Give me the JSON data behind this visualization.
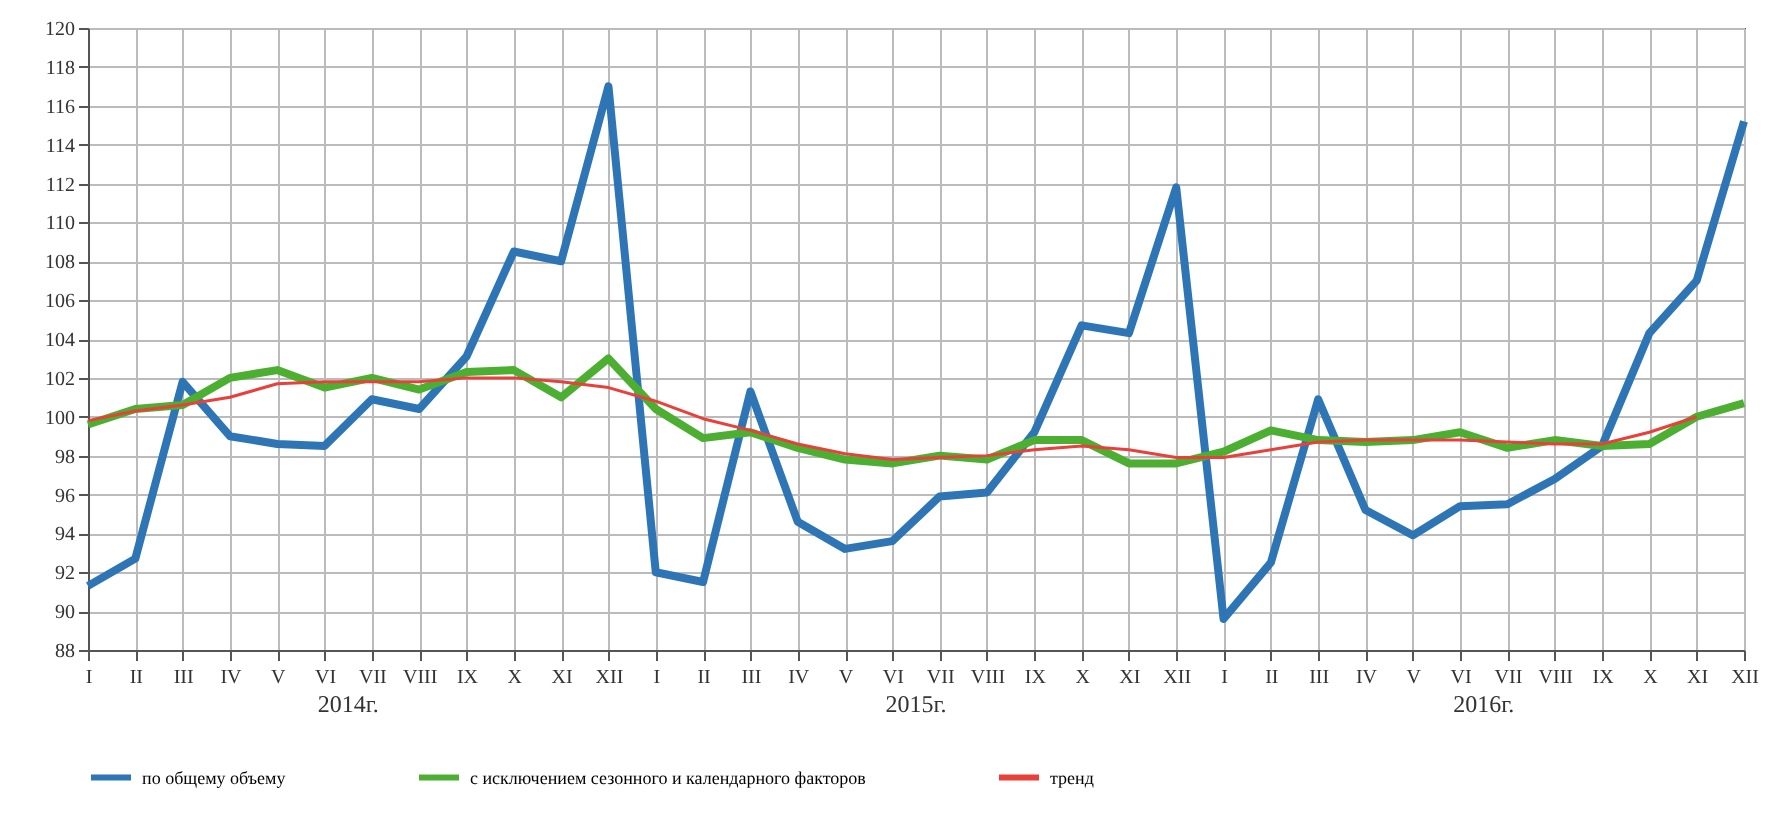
{
  "chart_data": {
    "type": "line",
    "categories": [
      "I",
      "II",
      "III",
      "IV",
      "V",
      "VI",
      "VII",
      "VIII",
      "IX",
      "X",
      "XI",
      "XII",
      "I",
      "II",
      "III",
      "IV",
      "V",
      "VI",
      "VII",
      "VIII",
      "IX",
      "X",
      "XI",
      "XII",
      "I",
      "II",
      "III",
      "IV",
      "V",
      "VI",
      "VII",
      "VIII",
      "IX",
      "X",
      "XI",
      "XII"
    ],
    "series": [
      {
        "name": "по общему объему",
        "color": "#2e75b6",
        "values": [
          91.3,
          92.7,
          101.8,
          99.0,
          98.6,
          98.5,
          100.9,
          100.4,
          103.1,
          108.5,
          108.0,
          117.0,
          92.0,
          91.5,
          101.3,
          94.6,
          93.2,
          93.6,
          95.9,
          96.1,
          99.2,
          104.7,
          104.3,
          111.8,
          89.6,
          92.5,
          100.9,
          95.2,
          93.9,
          95.4,
          95.5,
          96.8,
          98.5,
          104.3,
          107.0,
          115.2
        ]
      },
      {
        "name": "с исключением сезонного и календарного факторов",
        "color": "#4caf32",
        "values": [
          99.6,
          100.4,
          100.6,
          102.0,
          102.4,
          101.5,
          102.0,
          101.4,
          102.3,
          102.4,
          101.0,
          103.0,
          100.4,
          98.9,
          99.2,
          98.4,
          97.8,
          97.6,
          98.0,
          97.8,
          98.8,
          98.8,
          97.6,
          97.6,
          98.2,
          99.3,
          98.8,
          98.7,
          98.8,
          99.2,
          98.4,
          98.8,
          98.5,
          98.6,
          100.0,
          100.7
        ]
      },
      {
        "name": "тренд",
        "color": "#e8403a",
        "values": [
          99.8,
          100.3,
          100.6,
          101.0,
          101.7,
          101.8,
          101.8,
          101.8,
          102.0,
          102.0,
          101.8,
          101.5,
          100.8,
          99.9,
          99.3,
          98.6,
          98.1,
          97.8,
          97.9,
          98.0,
          98.3,
          98.5,
          98.3,
          97.9,
          97.9,
          98.3,
          98.7,
          98.8,
          98.8,
          98.8,
          98.7,
          98.6,
          98.6,
          99.2,
          100.0,
          null
        ]
      }
    ],
    "ylim": [
      88,
      120
    ],
    "yticks": [
      88,
      90,
      92,
      94,
      96,
      98,
      100,
      102,
      104,
      106,
      108,
      110,
      112,
      114,
      116,
      118,
      120
    ],
    "grid": true,
    "legend": "bottom",
    "annotations": [
      "2014г.",
      "2015г.",
      "2016г."
    ]
  }
}
